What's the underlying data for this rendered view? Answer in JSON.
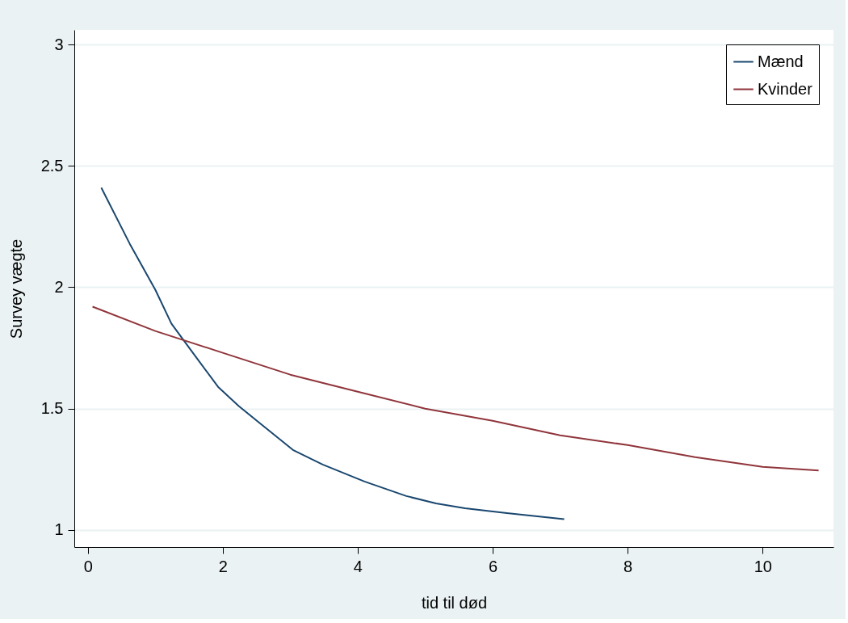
{
  "chart_data": {
    "type": "line",
    "xlabel": "tid til død",
    "ylabel": "Survey vægte",
    "xlim": [
      -0.2,
      11.05
    ],
    "ylim": [
      0.93,
      3.06
    ],
    "xticks": [
      0,
      2,
      4,
      6,
      8,
      10
    ],
    "yticks": [
      1,
      1.5,
      2,
      2.5,
      3
    ],
    "grid": "y",
    "legend": "top right",
    "marker": "none",
    "line_style": "solid",
    "series": [
      {
        "name": "Mænd",
        "color": "#1a476f",
        "x": [
          0.2,
          0.62,
          1.0,
          1.24,
          1.61,
          1.93,
          2.24,
          2.55,
          3.04,
          3.48,
          4.1,
          4.72,
          5.16,
          5.59,
          6.21,
          7.06
        ],
        "values": [
          2.41,
          2.18,
          1.99,
          1.85,
          1.71,
          1.59,
          1.51,
          1.44,
          1.33,
          1.27,
          1.2,
          1.14,
          1.11,
          1.09,
          1.07,
          1.045
        ]
      },
      {
        "name": "Kvinder",
        "color": "#90353b",
        "x": [
          0.07,
          1.0,
          2.0,
          3.0,
          4.0,
          5.0,
          6.0,
          7.0,
          8.0,
          9.0,
          10.0,
          10.83
        ],
        "values": [
          1.92,
          1.82,
          1.73,
          1.64,
          1.57,
          1.5,
          1.45,
          1.39,
          1.35,
          1.3,
          1.26,
          1.245
        ]
      }
    ]
  }
}
